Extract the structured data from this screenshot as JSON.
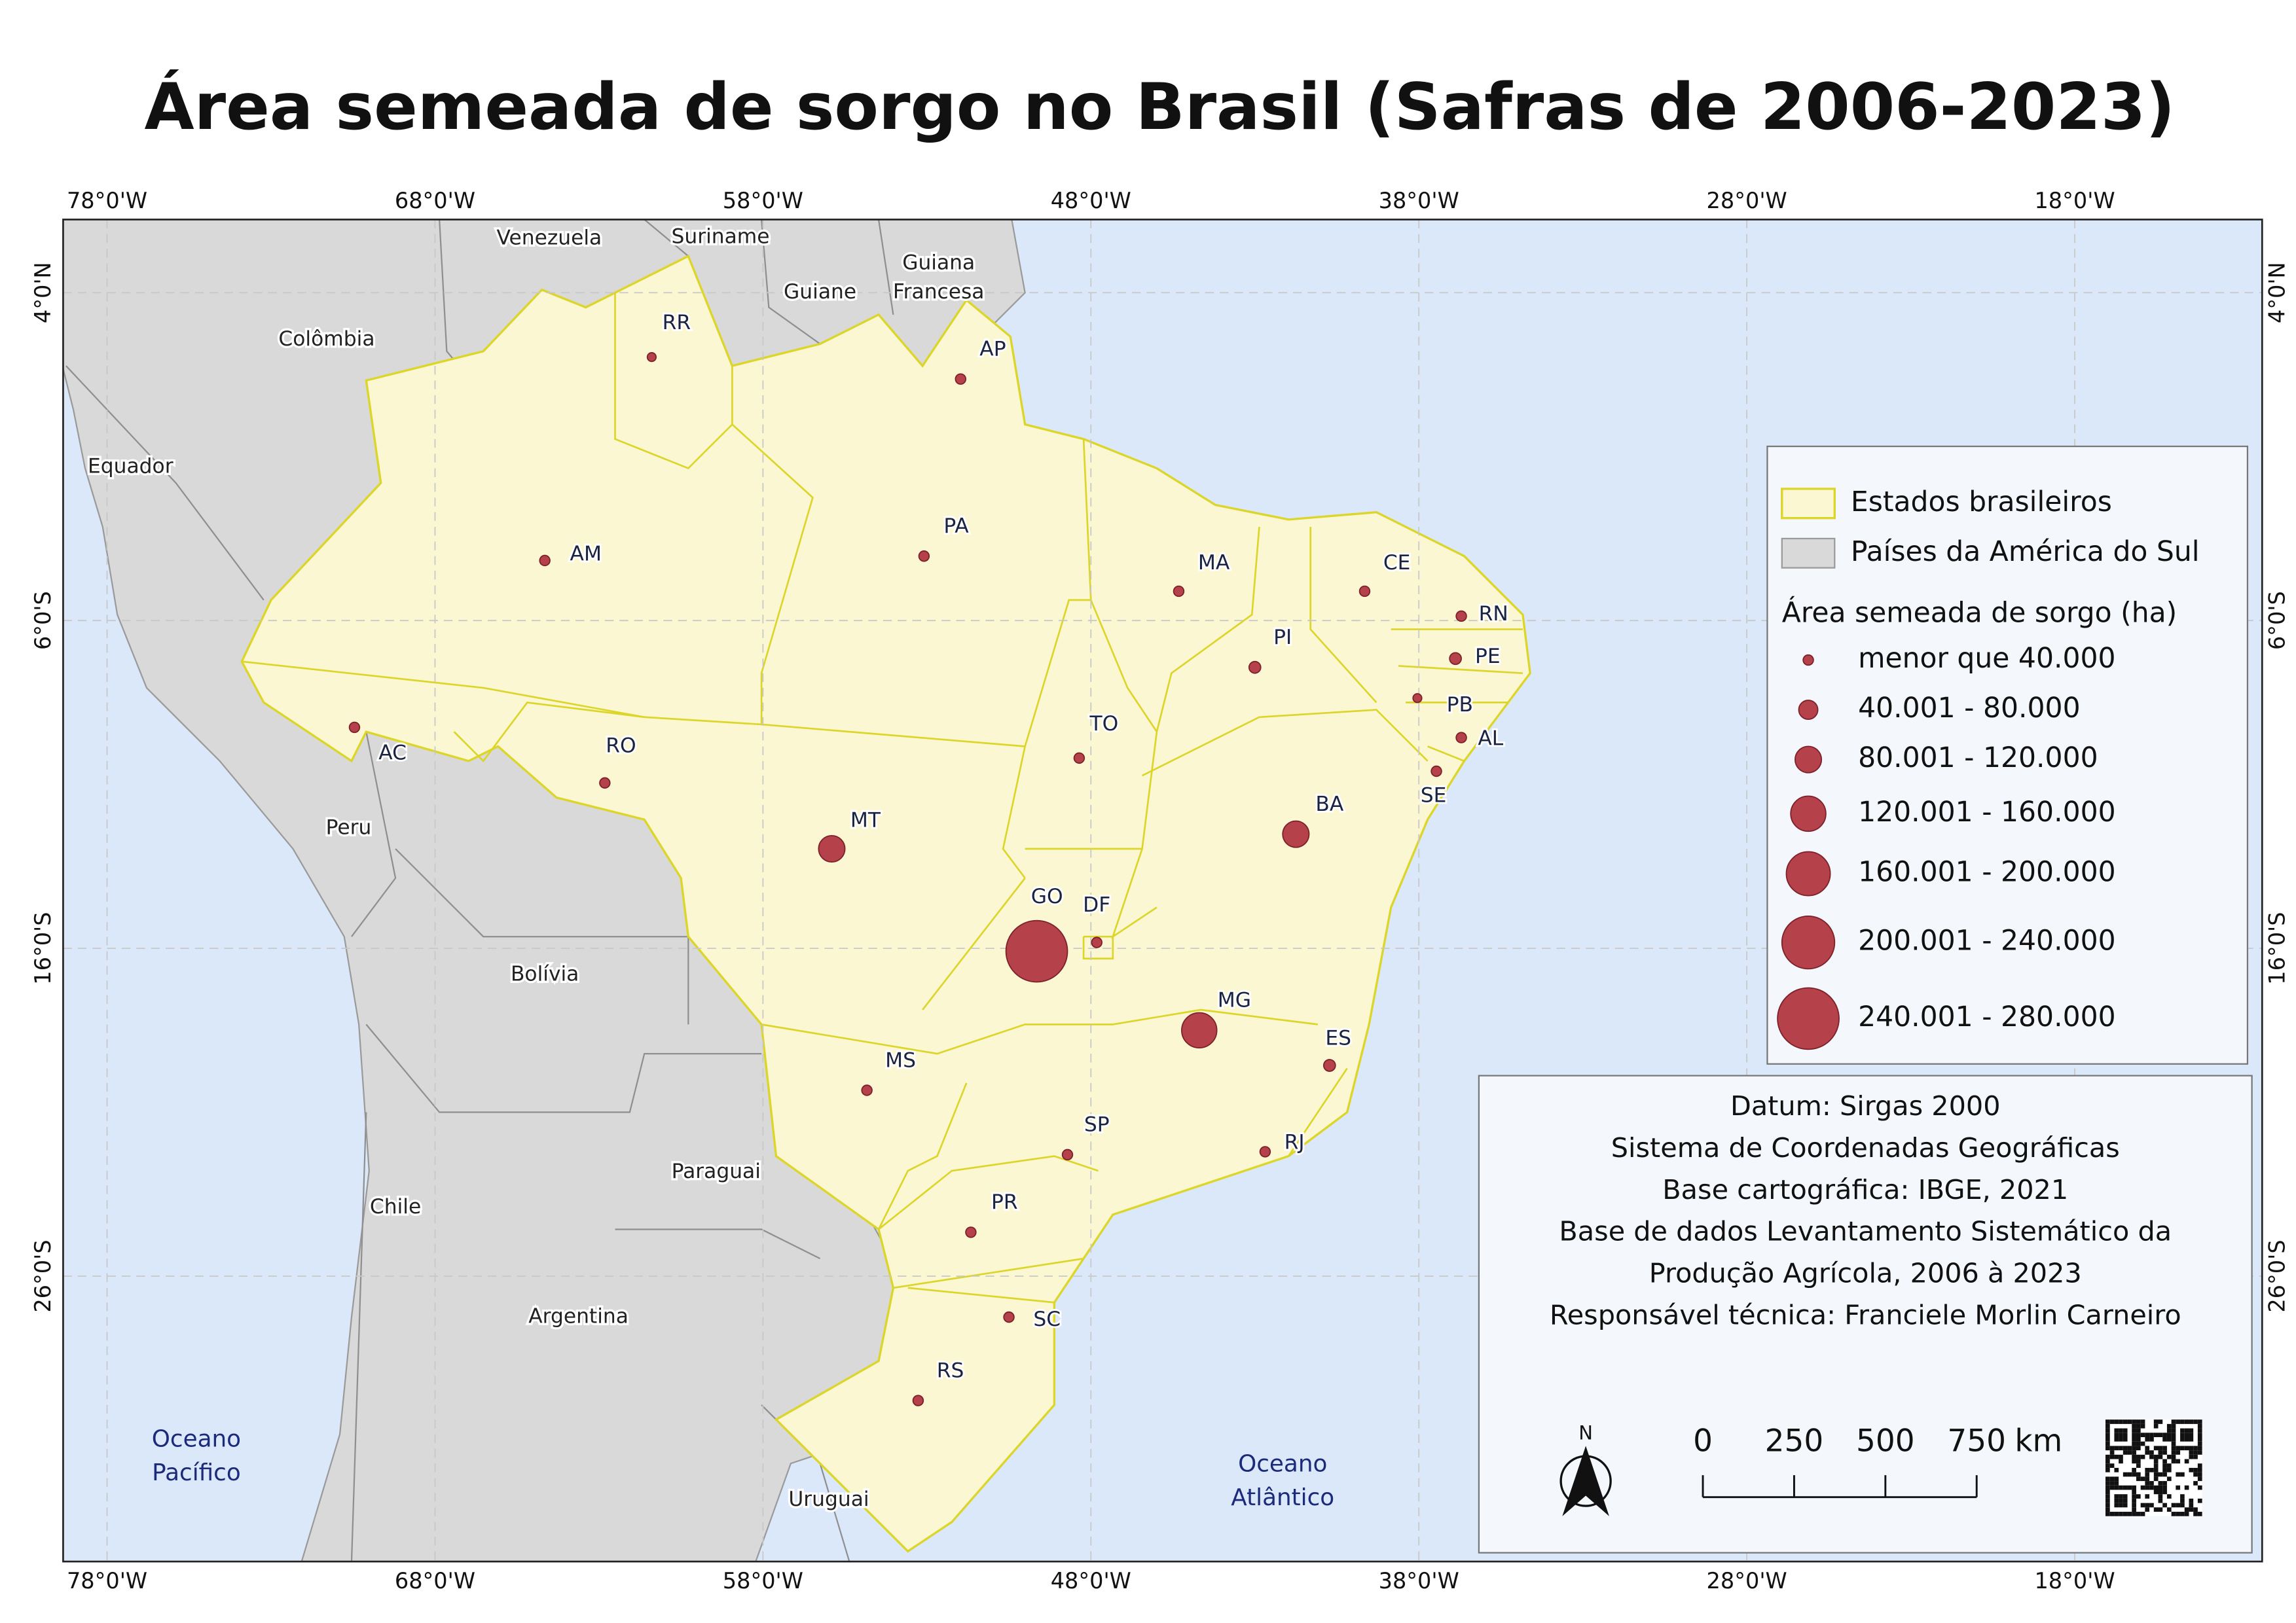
{
  "title": "Área semeada de sorgo no Brasil  (Safras de 2006-2023)",
  "graticule": {
    "lon": [
      {
        "value": -78,
        "label": "78°0'W"
      },
      {
        "value": -68,
        "label": "68°0'W"
      },
      {
        "value": -58,
        "label": "58°0'W"
      },
      {
        "value": -48,
        "label": "48°0'W"
      },
      {
        "value": -38,
        "label": "38°0'W"
      },
      {
        "value": -28,
        "label": "28°0'W"
      },
      {
        "value": -18,
        "label": "18°0'W"
      }
    ],
    "lat": [
      {
        "value": 4,
        "label": "4°0'N"
      },
      {
        "value": -6,
        "label": "6°0'S"
      },
      {
        "value": -16,
        "label": "16°0'S"
      },
      {
        "value": -26,
        "label": "26°0'S"
      }
    ]
  },
  "countries": [
    "Venezuela",
    "Suriname",
    "Guiana",
    "Francesa",
    "Guiane",
    "Colômbia",
    "Equador",
    "Peru",
    "Bolívia",
    "Paraguai",
    "Chile",
    "Argentina",
    "Uruguai"
  ],
  "oceans": [
    [
      "Oceano",
      "Pacífico"
    ],
    [
      "Oceano",
      "Atlântico"
    ]
  ],
  "states": [
    "RR",
    "AP",
    "AM",
    "PA",
    "MA",
    "CE",
    "RN",
    "PE",
    "PI",
    "PB",
    "AL",
    "AC",
    "TO",
    "RO",
    "SE",
    "MT",
    "BA",
    "GO",
    "DF",
    "MG",
    "MS",
    "ES",
    "SP",
    "RJ",
    "PR",
    "SC",
    "RS"
  ],
  "legend": {
    "layers": [
      "Estados brasileiros",
      "Países da América do Sul"
    ],
    "size_title": "Área semeada de sorgo (ha)",
    "classes": [
      "menor que 40.000",
      "40.001 - 80.000",
      "80.001 - 120.000",
      "120.001 - 160.000",
      "160.001 - 200.000",
      "200.001 - 240.000",
      "240.001 - 280.000"
    ]
  },
  "info": [
    "Datum: Sirgas 2000",
    "Sistema de Coordenadas Geográficas",
    "Base cartográfica: IBGE, 2021",
    "Base de dados Levantamento Sistemático da",
    "Produção Agrícola, 2006 à 2023",
    "Responsável técnica: Franciele Morlin Carneiro"
  ],
  "scale_bar": {
    "ticks": [
      0,
      250,
      500,
      750
    ],
    "unit": "km"
  },
  "north": "N"
}
